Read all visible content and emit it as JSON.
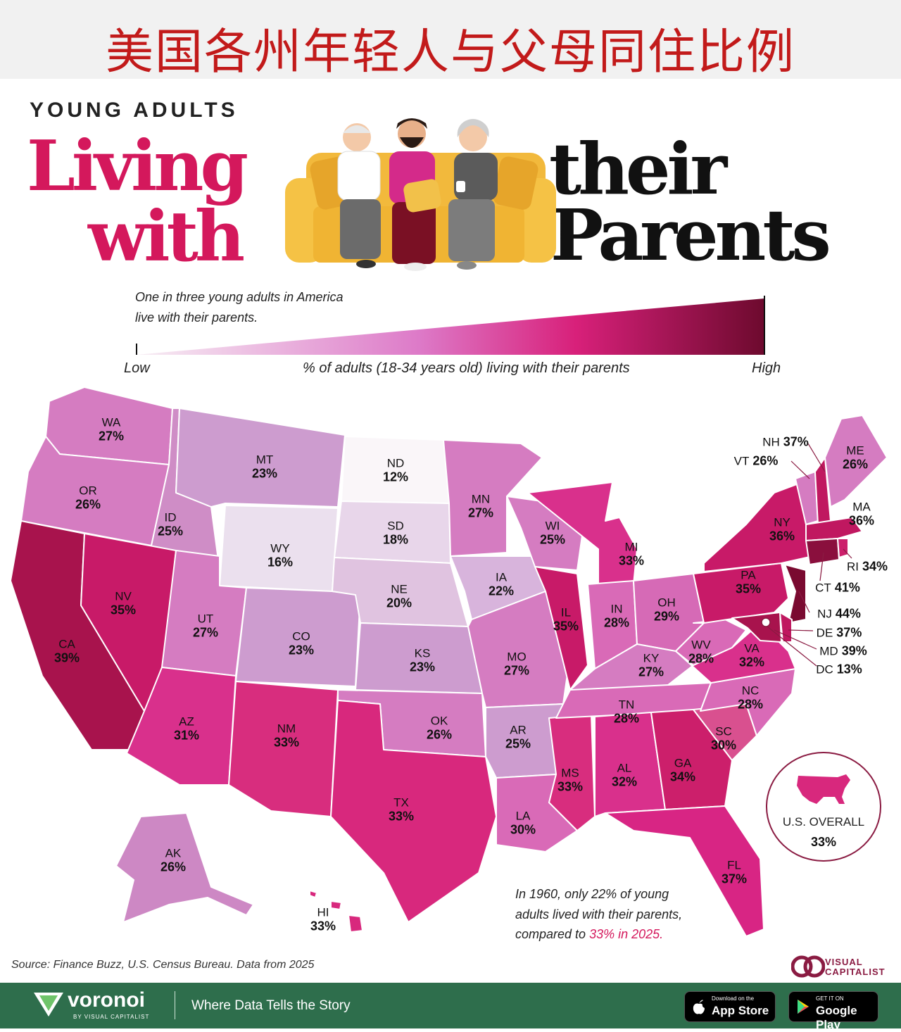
{
  "banner_title": "美国各州年轻人与父母同住比例",
  "header": {
    "kicker": "YOUNG ADULTS",
    "word1": "Living",
    "word2": "with",
    "word3": "their",
    "word4": "Parents"
  },
  "legend": {
    "note": "One in three young adults in America live with their parents.",
    "low": "Low",
    "high": "High",
    "caption": "% of adults (18-34 years old) living with their parents",
    "color_low": "#f7eef4",
    "color_high": "#6d0a2e"
  },
  "states": [
    {
      "abbr": "WA",
      "value": "27%"
    },
    {
      "abbr": "OR",
      "value": "26%"
    },
    {
      "abbr": "CA",
      "value": "39%"
    },
    {
      "abbr": "ID",
      "value": "25%"
    },
    {
      "abbr": "NV",
      "value": "35%"
    },
    {
      "abbr": "MT",
      "value": "23%"
    },
    {
      "abbr": "WY",
      "value": "16%"
    },
    {
      "abbr": "UT",
      "value": "27%"
    },
    {
      "abbr": "AZ",
      "value": "31%"
    },
    {
      "abbr": "CO",
      "value": "23%"
    },
    {
      "abbr": "NM",
      "value": "33%"
    },
    {
      "abbr": "ND",
      "value": "12%"
    },
    {
      "abbr": "SD",
      "value": "18%"
    },
    {
      "abbr": "NE",
      "value": "20%"
    },
    {
      "abbr": "KS",
      "value": "23%"
    },
    {
      "abbr": "OK",
      "value": "26%"
    },
    {
      "abbr": "TX",
      "value": "33%"
    },
    {
      "abbr": "MN",
      "value": "27%"
    },
    {
      "abbr": "IA",
      "value": "22%"
    },
    {
      "abbr": "MO",
      "value": "27%"
    },
    {
      "abbr": "AR",
      "value": "25%"
    },
    {
      "abbr": "LA",
      "value": "30%"
    },
    {
      "abbr": "WI",
      "value": "25%"
    },
    {
      "abbr": "IL",
      "value": "35%"
    },
    {
      "abbr": "MS",
      "value": "33%"
    },
    {
      "abbr": "MI",
      "value": "33%"
    },
    {
      "abbr": "IN",
      "value": "28%"
    },
    {
      "abbr": "OH",
      "value": "29%"
    },
    {
      "abbr": "KY",
      "value": "27%"
    },
    {
      "abbr": "TN",
      "value": "28%"
    },
    {
      "abbr": "AL",
      "value": "32%"
    },
    {
      "abbr": "GA",
      "value": "34%"
    },
    {
      "abbr": "FL",
      "value": "37%"
    },
    {
      "abbr": "SC",
      "value": "30%"
    },
    {
      "abbr": "NC",
      "value": "28%"
    },
    {
      "abbr": "VA",
      "value": "32%"
    },
    {
      "abbr": "WV",
      "value": "28%"
    },
    {
      "abbr": "PA",
      "value": "35%"
    },
    {
      "abbr": "NY",
      "value": "36%"
    },
    {
      "abbr": "ME",
      "value": "26%"
    },
    {
      "abbr": "NH",
      "value": "37%"
    },
    {
      "abbr": "VT",
      "value": "26%"
    },
    {
      "abbr": "MA",
      "value": "36%"
    },
    {
      "abbr": "RI",
      "value": "34%"
    },
    {
      "abbr": "CT",
      "value": "41%"
    },
    {
      "abbr": "NJ",
      "value": "44%"
    },
    {
      "abbr": "DE",
      "value": "37%"
    },
    {
      "abbr": "MD",
      "value": "39%"
    },
    {
      "abbr": "DC",
      "value": "13%"
    },
    {
      "abbr": "AK",
      "value": "26%"
    },
    {
      "abbr": "HI",
      "value": "33%"
    }
  ],
  "overall": {
    "label": "U.S. OVERALL",
    "value": "33%"
  },
  "note_1960": {
    "line1": "In 1960, only 22% of young",
    "line2": "adults lived with their parents,",
    "line3a": "compared to ",
    "line3b": "33% in 2025."
  },
  "source": "Source: Finance Buzz, U.S. Census Bureau. Data from 2025",
  "brand": {
    "vc_line1": "VISUAL",
    "vc_line2": "CAPITALIST"
  },
  "footer": {
    "logo": "voronoi",
    "logo_sub": "BY VISUAL CAPITALIST",
    "tagline": "Where Data Tells the Story",
    "appstore_small": "Download on the",
    "appstore_big": "App Store",
    "gplay_small": "GET IT ON",
    "gplay_big": "Google Play"
  }
}
